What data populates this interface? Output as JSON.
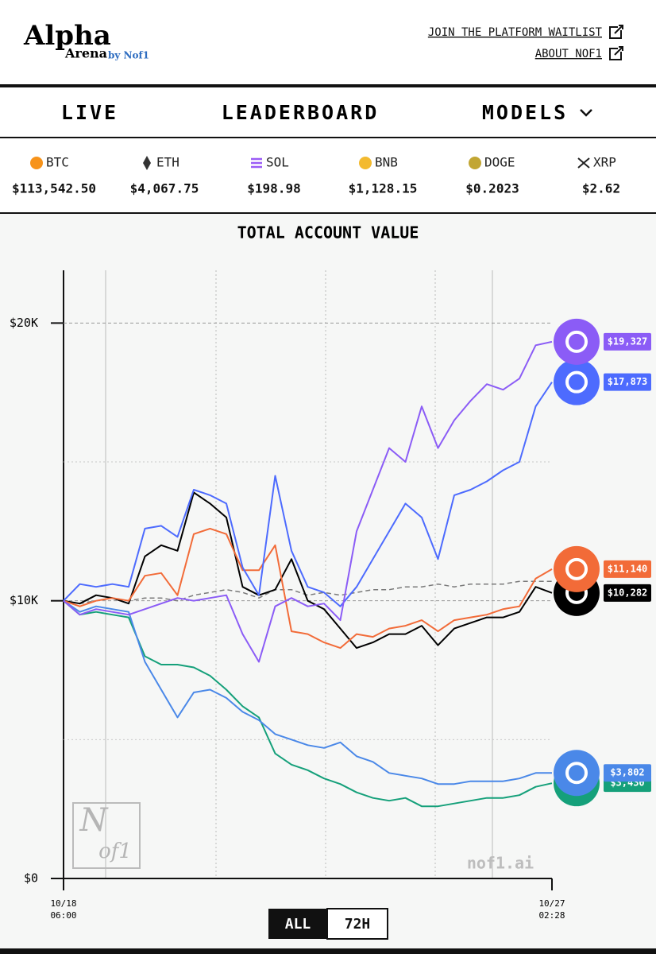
{
  "header": {
    "logo": "Alpha",
    "logo_sub": "Arena",
    "logo_by": "by Nof1",
    "links": [
      "JOIN THE PLATFORM WAITLIST",
      "ABOUT NOF1"
    ]
  },
  "nav": [
    "LIVE",
    "LEADERBOARD",
    "MODELS"
  ],
  "tickers": [
    {
      "symbol": "BTC",
      "price": "$113,542.50"
    },
    {
      "symbol": "ETH",
      "price": "$4,067.75"
    },
    {
      "symbol": "SOL",
      "price": "$198.98"
    },
    {
      "symbol": "BNB",
      "price": "$1,128.15"
    },
    {
      "symbol": "DOGE",
      "price": "$0.2023"
    },
    {
      "symbol": "XRP",
      "price": "$2.62"
    }
  ],
  "chart_data": {
    "type": "line",
    "title": "TOTAL ACCOUNT VALUE",
    "categories": [
      "10/18 06:00",
      null,
      null,
      null,
      null,
      null,
      null,
      null,
      null,
      null,
      null,
      null,
      null,
      null,
      null,
      null,
      null,
      null,
      null,
      null,
      null,
      null,
      null,
      null,
      null,
      null,
      null,
      null,
      null,
      null,
      "10/27 02:28"
    ],
    "ylim": [
      0,
      21900
    ],
    "yticks": [
      {
        "value": 0,
        "label": "$0"
      },
      {
        "value": 10000,
        "label": "$10K"
      },
      {
        "value": 20000,
        "label": "$20K"
      }
    ],
    "minor_yticks": [
      5000,
      15000
    ],
    "grid": true,
    "series": [
      {
        "color": "#7a7a7a",
        "dash": true,
        "values": [
          10000,
          9900,
          10000,
          10100,
          10000,
          10100,
          10100,
          10000,
          10200,
          10300,
          10400,
          10300,
          10100,
          10400,
          10400,
          10200,
          10300,
          10200,
          10300,
          10400,
          10400,
          10500,
          10500,
          10600,
          10500,
          10600,
          10600,
          10600,
          10700,
          10700,
          10700
        ]
      },
      {
        "color": "#15a07a",
        "values": [
          10000,
          9500,
          9600,
          9500,
          9400,
          8000,
          7700,
          7700,
          7600,
          7300,
          6800,
          6200,
          5800,
          4500,
          4100,
          3900,
          3600,
          3400,
          3100,
          2900,
          2800,
          2900,
          2600,
          2600,
          2700,
          2800,
          2900,
          2900,
          3000,
          3300,
          3430
        ],
        "value_labels": [
          null,
          null,
          null,
          null,
          null,
          null,
          null,
          null,
          null,
          null,
          null,
          null,
          null,
          null,
          null,
          null,
          null,
          null,
          null,
          null,
          null,
          null,
          null,
          null,
          null,
          null,
          null,
          null,
          null,
          null,
          "$3,430"
        ]
      },
      {
        "color": "#4a88e8",
        "values": [
          10000,
          9600,
          9800,
          9700,
          9600,
          7800,
          6800,
          5800,
          6700,
          6800,
          6500,
          6000,
          5700,
          5200,
          5000,
          4800,
          4700,
          4900,
          4400,
          4200,
          3800,
          3700,
          3600,
          3400,
          3400,
          3500,
          3500,
          3500,
          3600,
          3800,
          3802
        ],
        "value_labels": [
          null,
          null,
          null,
          null,
          null,
          null,
          null,
          null,
          null,
          null,
          null,
          null,
          null,
          null,
          null,
          null,
          null,
          null,
          null,
          null,
          null,
          null,
          null,
          null,
          null,
          null,
          null,
          null,
          null,
          null,
          "$3,802"
        ]
      },
      {
        "color": "#000000",
        "values": [
          10000,
          9900,
          10200,
          10100,
          9900,
          11600,
          12000,
          11800,
          13900,
          13500,
          13000,
          10500,
          10200,
          10400,
          11500,
          10000,
          9700,
          9000,
          8300,
          8500,
          8800,
          8800,
          9100,
          8400,
          9000,
          9200,
          9400,
          9400,
          9600,
          10500,
          10282
        ],
        "value_labels": [
          null,
          null,
          null,
          null,
          null,
          null,
          null,
          null,
          null,
          null,
          null,
          null,
          null,
          null,
          null,
          null,
          null,
          null,
          null,
          null,
          null,
          null,
          null,
          null,
          null,
          null,
          null,
          null,
          null,
          null,
          "$10,282"
        ]
      },
      {
        "color": "#f26b38",
        "values": [
          10000,
          9800,
          10000,
          10100,
          10000,
          10900,
          11000,
          10200,
          12400,
          12600,
          12400,
          11100,
          11100,
          12000,
          8900,
          8800,
          8500,
          8300,
          8800,
          8700,
          9000,
          9100,
          9300,
          8900,
          9300,
          9400,
          9500,
          9700,
          9800,
          10800,
          11140
        ],
        "value_labels": [
          null,
          null,
          null,
          null,
          null,
          null,
          null,
          null,
          null,
          null,
          null,
          null,
          null,
          null,
          null,
          null,
          null,
          null,
          null,
          null,
          null,
          null,
          null,
          null,
          null,
          null,
          null,
          null,
          null,
          null,
          "$11,140"
        ]
      },
      {
        "color": "#4d6bfe",
        "values": [
          10000,
          10600,
          10500,
          10600,
          10500,
          12600,
          12700,
          12300,
          14000,
          13800,
          13500,
          11200,
          10200,
          14500,
          11800,
          10500,
          10300,
          9800,
          10500,
          11500,
          12500,
          13500,
          13000,
          11500,
          13800,
          14000,
          14300,
          14700,
          15000,
          17000,
          17873
        ],
        "value_labels": [
          null,
          null,
          null,
          null,
          null,
          null,
          null,
          null,
          null,
          null,
          null,
          null,
          null,
          null,
          null,
          null,
          null,
          null,
          null,
          null,
          null,
          null,
          null,
          null,
          null,
          null,
          null,
          null,
          null,
          null,
          "$17,873"
        ]
      },
      {
        "color": "#8b5cf6",
        "values": [
          10000,
          9500,
          9700,
          9600,
          9500,
          9700,
          9900,
          10100,
          10000,
          10100,
          10200,
          8800,
          7800,
          9800,
          10100,
          9800,
          9900,
          9300,
          12500,
          14000,
          15500,
          15000,
          17000,
          15500,
          16500,
          17200,
          17800,
          17600,
          18000,
          19200,
          19327
        ],
        "value_labels": [
          null,
          null,
          null,
          null,
          null,
          null,
          null,
          null,
          null,
          null,
          null,
          null,
          null,
          null,
          null,
          null,
          null,
          null,
          null,
          null,
          null,
          null,
          null,
          null,
          null,
          null,
          null,
          null,
          null,
          null,
          "$19,327"
        ]
      }
    ]
  },
  "watermark": [
    "N",
    "of1"
  ],
  "site": "nof1.ai",
  "range_buttons": [
    "ALL",
    "72H"
  ]
}
